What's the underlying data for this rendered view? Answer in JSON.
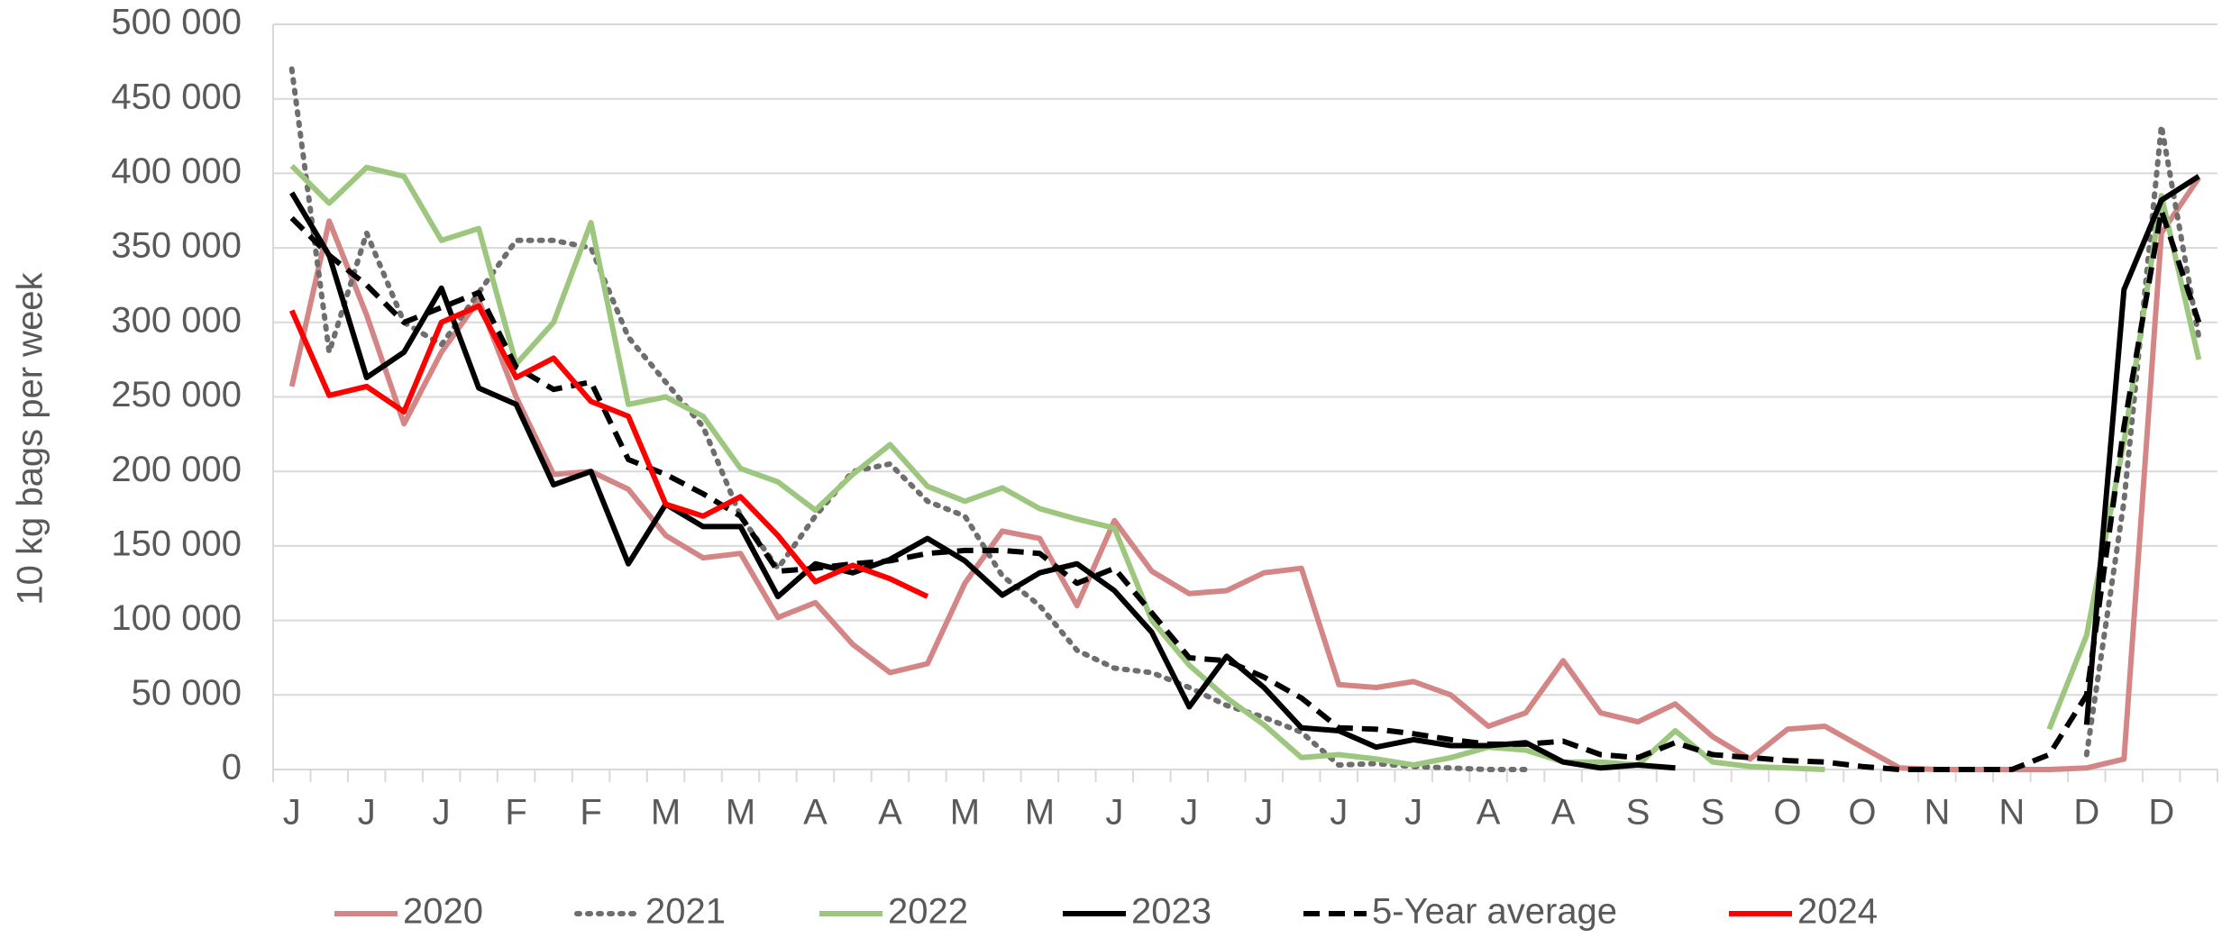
{
  "chart_data": {
    "type": "line",
    "y_label": "10 kg bags per week",
    "categories": [
      "J",
      null,
      "J",
      null,
      "J",
      null,
      "F",
      null,
      "F",
      null,
      "M",
      null,
      "M",
      null,
      "A",
      null,
      "A",
      null,
      "M",
      null,
      "M",
      null,
      "J",
      null,
      "J",
      null,
      "J",
      null,
      "J",
      null,
      "J",
      null,
      "A",
      null,
      "A",
      null,
      "S",
      null,
      "S",
      null,
      "O",
      null,
      "O",
      null,
      "N",
      null,
      "N",
      null,
      "D",
      null,
      "D",
      null
    ],
    "ylim": [
      0,
      500000
    ],
    "yticks": [
      0,
      {
        "value": 50000,
        "label": "50 000"
      },
      {
        "value": 100000,
        "label": "100 000"
      },
      {
        "value": 150000,
        "label": "150 000"
      },
      {
        "value": 200000,
        "label": "200 000"
      },
      {
        "value": 250000,
        "label": "250 000"
      },
      {
        "value": 300000,
        "label": "300 000"
      },
      {
        "value": 350000,
        "label": "350 000"
      },
      {
        "value": 400000,
        "label": "400 000"
      },
      {
        "value": 450000,
        "label": "450 000"
      },
      {
        "value": 500000,
        "label": "500 000"
      }
    ],
    "grid": true,
    "legend": "bottom",
    "series": [
      {
        "name": "2020",
        "color": "#d48585",
        "style": "solid",
        "values": [
          257000,
          368000,
          305000,
          232000,
          280000,
          315000,
          250000,
          198000,
          200000,
          188000,
          157000,
          142000,
          145000,
          102000,
          112000,
          84000,
          65000,
          71000,
          125000,
          160000,
          155000,
          110000,
          167000,
          133000,
          118000,
          120000,
          132000,
          135000,
          57000,
          55000,
          59000,
          50000,
          29000,
          38000,
          73000,
          38000,
          32000,
          44000,
          22000,
          7000,
          27000,
          29000,
          15000,
          1000,
          0,
          0,
          0,
          0,
          1000,
          7000,
          360000,
          397000
        ]
      },
      {
        "name": "2021",
        "color": "#6e6e6e",
        "style": "dotted",
        "values": [
          470000,
          280000,
          360000,
          300000,
          285000,
          320000,
          355000,
          355000,
          350000,
          290000,
          260000,
          230000,
          170000,
          135000,
          170000,
          200000,
          205000,
          180000,
          170000,
          130000,
          110000,
          80000,
          68000,
          65000,
          55000,
          43000,
          35000,
          25000,
          3000,
          4000,
          2000,
          1000,
          0,
          0,
          null,
          null,
          null,
          null,
          null,
          null,
          null,
          null,
          null,
          null,
          null,
          null,
          null,
          null,
          10000,
          180000,
          432000,
          290000
        ]
      },
      {
        "name": "2022",
        "color": "#9dc67e",
        "style": "solid",
        "values": [
          405000,
          380000,
          404000,
          398000,
          355000,
          363000,
          272000,
          300000,
          367000,
          245000,
          250000,
          237000,
          202000,
          193000,
          174000,
          198000,
          218000,
          190000,
          180000,
          189000,
          175000,
          168000,
          162000,
          100000,
          70000,
          48000,
          30000,
          8000,
          10000,
          7000,
          3000,
          8000,
          15000,
          13000,
          5000,
          5000,
          3000,
          26000,
          5000,
          2000,
          1000,
          0,
          null,
          null,
          null,
          null,
          null,
          27000,
          90000,
          220000,
          385000,
          275000
        ]
      },
      {
        "name": "2023",
        "color": "#000000",
        "style": "solid",
        "values": [
          387000,
          345000,
          263000,
          280000,
          323000,
          256000,
          245000,
          191000,
          200000,
          138000,
          178000,
          163000,
          163000,
          116000,
          138000,
          132000,
          141000,
          155000,
          140000,
          117000,
          132000,
          138000,
          120000,
          92000,
          42000,
          76000,
          55000,
          28000,
          26000,
          15000,
          20000,
          16000,
          16000,
          18000,
          5000,
          1000,
          3000,
          1000,
          null,
          null,
          null,
          null,
          null,
          null,
          null,
          null,
          null,
          null,
          30000,
          322000,
          382000,
          398000
        ]
      },
      {
        "name": "5-Year average",
        "color": "#000000",
        "style": "dashed",
        "values": [
          370000,
          345000,
          325000,
          300000,
          310000,
          320000,
          270000,
          255000,
          260000,
          208000,
          198000,
          185000,
          170000,
          133000,
          135000,
          138000,
          140000,
          145000,
          147000,
          147000,
          145000,
          125000,
          135000,
          105000,
          75000,
          73000,
          62000,
          48000,
          28000,
          27000,
          24000,
          20000,
          17000,
          17000,
          19000,
          10000,
          8000,
          18000,
          10000,
          8000,
          6000,
          5000,
          2000,
          0,
          0,
          0,
          0,
          10000,
          50000,
          230000,
          375000,
          300000
        ]
      },
      {
        "name": "2024",
        "color": "#ff0000",
        "style": "solid",
        "values": [
          308000,
          251000,
          257000,
          240000,
          300000,
          311000,
          263000,
          276000,
          247000,
          237000,
          178000,
          170000,
          183000,
          157000,
          126000,
          137000,
          128000,
          116000,
          null,
          null,
          null,
          null,
          null,
          null,
          null,
          null,
          null,
          null,
          null,
          null,
          null,
          null,
          null,
          null,
          null,
          null,
          null,
          null,
          null,
          null,
          null,
          null,
          null,
          null,
          null,
          null,
          null,
          null,
          null,
          null,
          null,
          null
        ]
      }
    ]
  }
}
